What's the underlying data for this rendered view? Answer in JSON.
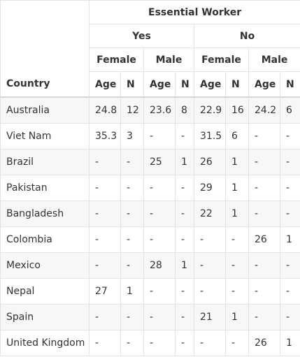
{
  "header": {
    "country": "Country",
    "group": "Essential Worker",
    "yes": "Yes",
    "no": "No",
    "female": "Female",
    "male": "Male",
    "age": "Age",
    "n": "N"
  },
  "rows": [
    {
      "country": "Australia",
      "v": [
        "24.8",
        "12",
        "23.6",
        "8",
        "22.9",
        "16",
        "24.2",
        "6"
      ]
    },
    {
      "country": "Viet Nam",
      "v": [
        "35.3",
        "3",
        "-",
        "-",
        "31.5",
        "6",
        "-",
        "-"
      ]
    },
    {
      "country": "Brazil",
      "v": [
        "-",
        "-",
        "25",
        "1",
        "26",
        "1",
        "-",
        "-"
      ]
    },
    {
      "country": "Pakistan",
      "v": [
        "-",
        "-",
        "-",
        "-",
        "29",
        "1",
        "-",
        "-"
      ]
    },
    {
      "country": "Bangladesh",
      "v": [
        "-",
        "-",
        "-",
        "-",
        "22",
        "1",
        "-",
        "-"
      ]
    },
    {
      "country": "Colombia",
      "v": [
        "-",
        "-",
        "-",
        "-",
        "-",
        "-",
        "26",
        "1"
      ]
    },
    {
      "country": "Mexico",
      "v": [
        "-",
        "-",
        "28",
        "1",
        "-",
        "-",
        "-",
        "-"
      ]
    },
    {
      "country": "Nepal",
      "v": [
        "27",
        "1",
        "-",
        "-",
        "-",
        "-",
        "-",
        "-"
      ]
    },
    {
      "country": "Spain",
      "v": [
        "-",
        "-",
        "-",
        "-",
        "21",
        "1",
        "-",
        "-"
      ]
    },
    {
      "country": "United Kingdom",
      "v": [
        "-",
        "-",
        "-",
        "-",
        "-",
        "-",
        "26",
        "1"
      ]
    }
  ]
}
